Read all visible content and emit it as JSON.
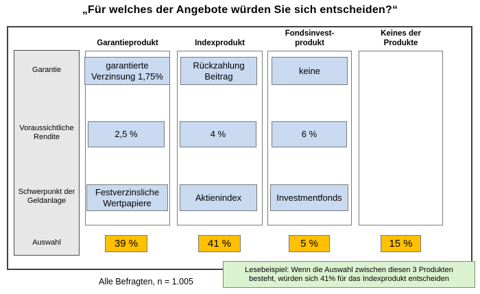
{
  "title": "„Für welches der Angebote würden Sie sich entscheiden?“",
  "row_labels": {
    "garantie": "Garantie",
    "rendite": "Voraussichtliche\nRendite",
    "schwerpunkt": "Schwerpunkt der\nGeldanlage",
    "auswahl": "Auswahl"
  },
  "columns": [
    {
      "header": "Garantieprodukt",
      "garantie": "garantierte\nVerzinsung 1,75%",
      "rendite": "2,5 %",
      "schwerpunkt": "Festverzinsliche\nWertpapiere",
      "auswahl": "39 %"
    },
    {
      "header": "Indexprodukt",
      "garantie": "Rückzahlung\nBeitrag",
      "rendite": "4 %",
      "schwerpunkt": "Aktienindex",
      "auswahl": "41 %"
    },
    {
      "header": "Fondsinvest-\nprodukt",
      "garantie": "keine",
      "rendite": "6 %",
      "schwerpunkt": "Investmentfonds",
      "auswahl": "5 %"
    },
    {
      "header": "Keines der\nProdukte",
      "auswahl": "15 %"
    }
  ],
  "note": "Lesebeispiel: Wenn die Auswahl zwischen diesen 3 Produkten\nbesteht, würden sich 41% für das Indexprodukt entscheiden",
  "footer": "Alle Befragten, n = 1.005",
  "colors": {
    "attribute_box_fill": "#c9d9f0",
    "selection_box_fill": "#ffc000",
    "note_fill": "#dbf2d0",
    "row_label_fill": "#e7e7e7"
  }
}
